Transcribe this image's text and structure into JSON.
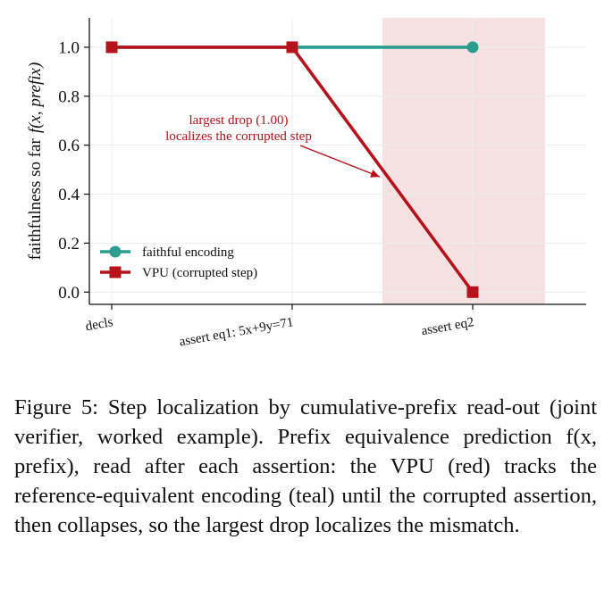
{
  "chart_data": {
    "type": "line",
    "categories": [
      "decls",
      "assert eq1: 5x+9y=71",
      "assert eq2"
    ],
    "series": [
      {
        "name": "faithful encoding",
        "values": [
          1.0,
          1.0,
          1.0
        ],
        "color": "#2a9d8f",
        "marker": "circle"
      },
      {
        "name": "VPU (corrupted step)",
        "values": [
          1.0,
          1.0,
          0.0
        ],
        "color": "#b5121b",
        "marker": "square"
      }
    ],
    "ylabel_prefix": "faithfulness so far",
    "ylabel_math": "f(x, prefix)",
    "ylim": [
      -0.05,
      1.12
    ],
    "yticks": [
      "0.0",
      "0.2",
      "0.4",
      "0.6",
      "0.8",
      "1.0"
    ],
    "ytick_values": [
      0.0,
      0.2,
      0.4,
      0.6,
      0.8,
      1.0
    ],
    "highlight_band": {
      "from_category_index": 1.5,
      "to_category_index": 2.5,
      "color": "#f6e1e2"
    },
    "annotation": {
      "lines": [
        "largest drop (1.00)",
        "localizes the corrupted step"
      ],
      "arrow_target": {
        "category_index": 1.5,
        "value": 0.5
      }
    },
    "legend_position": "lower-left",
    "grid": true
  },
  "caption": {
    "label": "Figure 5:",
    "text": "Step localization by cumulative-prefix read-out (joint verifier, worked example). Prefix equivalence prediction f(x, prefix), read after each assertion: the VPU (red) tracks the reference-equivalent encoding (teal) until the corrupted assertion, then collapses, so the largest drop localizes the mismatch."
  }
}
